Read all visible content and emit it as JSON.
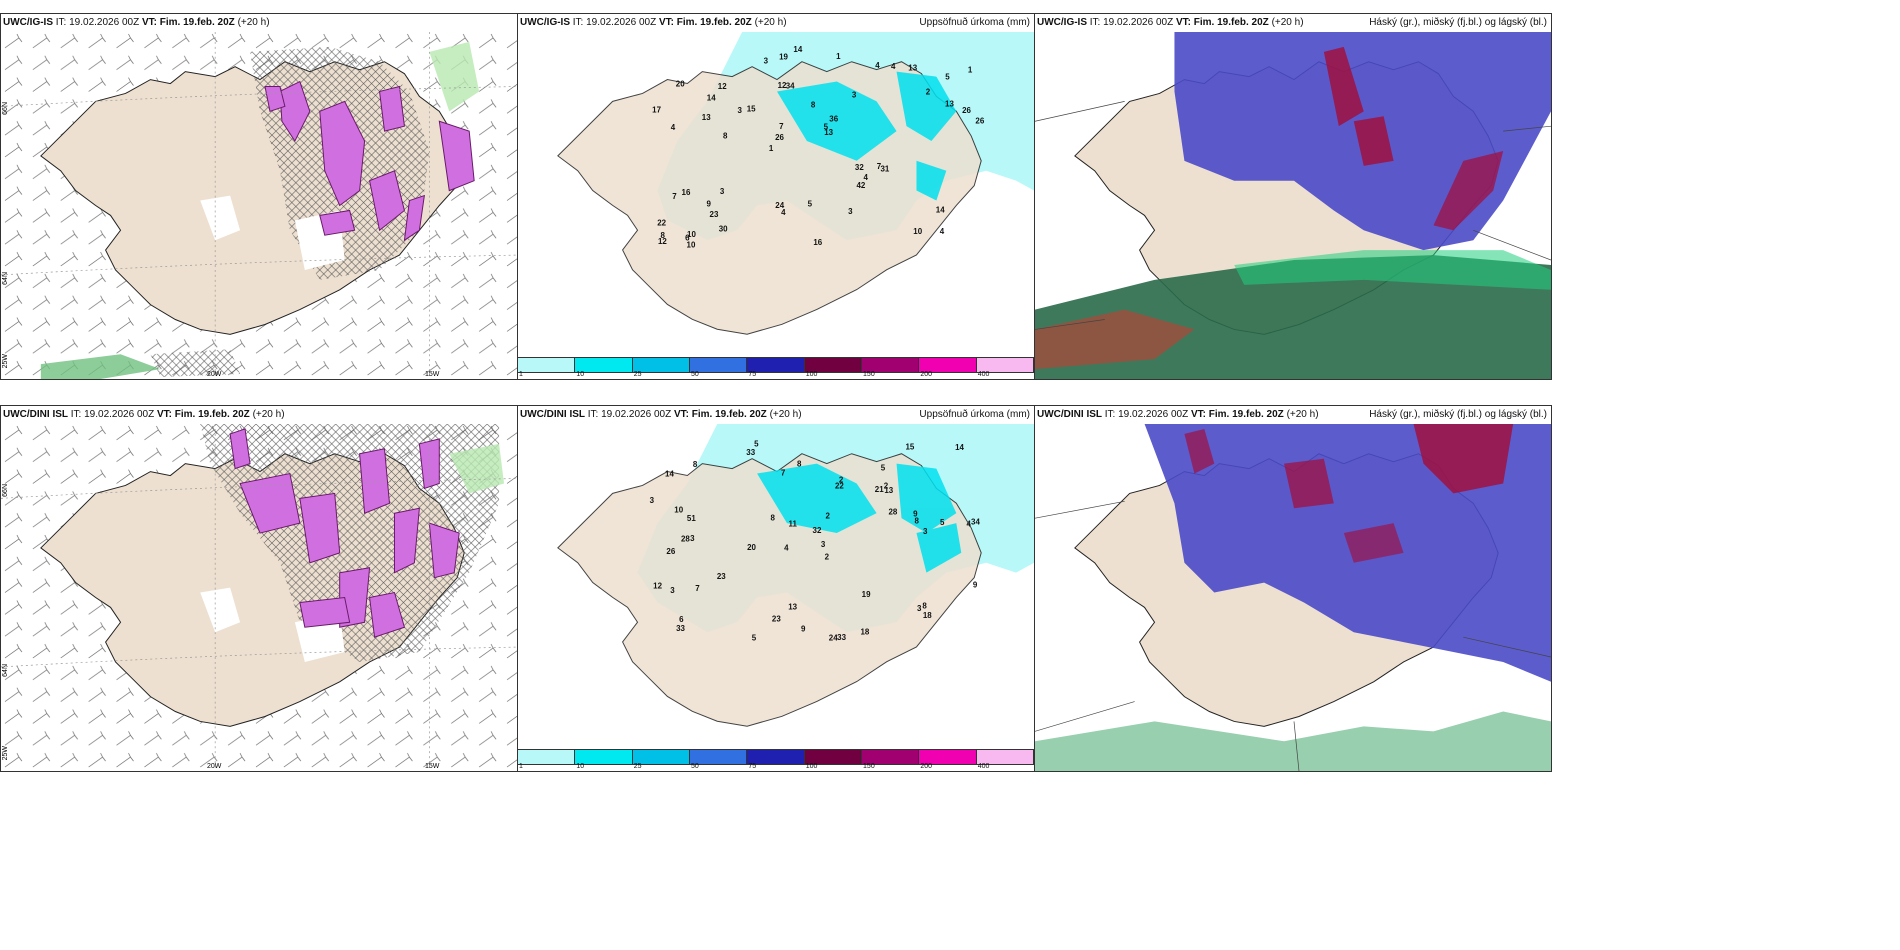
{
  "panels": [
    {
      "model": "UWC/IG-IS",
      "it": "IT: 19.02.2026 00Z",
      "vt_label": "VT:",
      "vt": "Fim. 19.feb. 20Z",
      "lead": "(+20 h)",
      "title_right": ""
    },
    {
      "model": "UWC/IG-IS",
      "it": "IT: 19.02.2026 00Z",
      "vt_label": "VT:",
      "vt": "Fim. 19.feb. 20Z",
      "lead": "(+20 h)",
      "title_right": "Uppsöfnuð úrkoma (mm)"
    },
    {
      "model": "UWC/IG-IS",
      "it": "IT: 19.02.2026 00Z",
      "vt_label": "VT:",
      "vt": "Fim. 19.feb. 20Z",
      "lead": "(+20 h)",
      "title_right": "Háský (gr.), miðský (fj.bl.) og lágský (bl.)"
    },
    {
      "model": "UWC/DINI ISL",
      "it": "IT: 19.02.2026 00Z",
      "vt_label": "VT:",
      "vt": "Fim. 19.feb. 20Z",
      "lead": "(+20 h)",
      "title_right": ""
    },
    {
      "model": "UWC/DINI ISL",
      "it": "IT: 19.02.2026 00Z",
      "vt_label": "VT:",
      "vt": "Fim. 19.feb. 20Z",
      "lead": "(+20 h)",
      "title_right": "Uppsöfnuð úrkoma (mm)"
    },
    {
      "model": "UWC/DINI ISL",
      "it": "IT: 19.02.2026 00Z",
      "vt_label": "VT:",
      "vt": "Fim. 19.feb. 20Z",
      "lead": "(+20 h)",
      "title_right": "Háský (gr.), miðský (fj.bl.) og lágský (bl.)"
    }
  ],
  "graticule": {
    "lat_66": "66N",
    "lat_64": "64N",
    "lon_25": "25W",
    "lon_20": "20W",
    "lon_15": "15W"
  },
  "colorbar": {
    "colors": [
      "#b8f8f8",
      "#00e8f0",
      "#00c0e8",
      "#3070e0",
      "#2020b0",
      "#700040",
      "#a00070",
      "#f000b0",
      "#f8b8f0"
    ],
    "ticks": [
      "1",
      "10",
      "25",
      "50",
      "75",
      "100",
      "150",
      "200",
      "400"
    ]
  },
  "precip_top": [
    "4",
    "4",
    "5",
    "1",
    "3",
    "10",
    "12",
    "8",
    "16",
    "15",
    "22",
    "23",
    "34",
    "36",
    "31",
    "20",
    "19",
    "26",
    "32",
    "13",
    "26",
    "24",
    "7",
    "12",
    "4",
    "3",
    "10",
    "14",
    "7",
    "16",
    "3",
    "13",
    "42",
    "30",
    "26",
    "5",
    "8",
    "4",
    "13",
    "7",
    "2",
    "1",
    "4",
    "3",
    "9",
    "10",
    "12",
    "5",
    "13",
    "14",
    "8",
    "17",
    "14",
    "4",
    "6",
    "1",
    "3"
  ],
  "precip_bottom": [
    "5",
    "5",
    "4",
    "4",
    "2",
    "3",
    "14",
    "21",
    "26",
    "22",
    "32",
    "33",
    "33",
    "20",
    "24",
    "33",
    "13",
    "15",
    "28",
    "23",
    "51",
    "28",
    "34",
    "5",
    "12",
    "10",
    "11",
    "8",
    "8",
    "3",
    "3",
    "2",
    "7",
    "8",
    "19",
    "9",
    "9",
    "23",
    "14",
    "8",
    "6",
    "5",
    "18",
    "8",
    "9",
    "13",
    "18",
    "2",
    "3",
    "3",
    "7",
    "3",
    "2"
  ]
}
